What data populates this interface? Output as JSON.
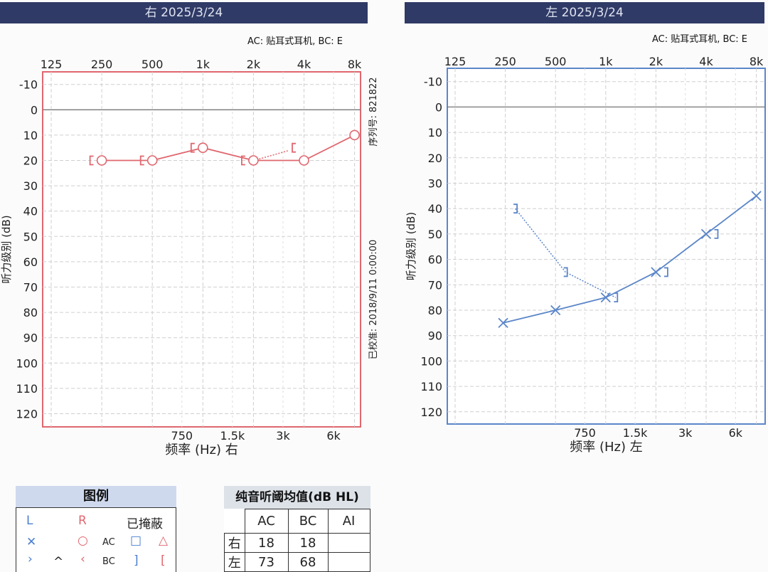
{
  "right_panel": {
    "title": "右 2025/3/24",
    "transducer": "AC: 贴耳式耳机, BC: E",
    "serial": "序列号: 821822",
    "calibrated": "已校准: 2018/9/11 0:00:00",
    "xlabel": "频率 (Hz) 右",
    "ylabel": "听力级别 (dB)",
    "color": "#e0676f"
  },
  "left_panel": {
    "title": "左 2025/3/24",
    "transducer": "AC: 贴耳式耳机, BC: E",
    "xlabel": "频率 (Hz) 左",
    "ylabel": "听力级别 (dB)",
    "color": "#5b86c9"
  },
  "chart_data": [
    {
      "type": "line",
      "title": "右 2025/3/24",
      "xlabel": "频率 (Hz) 右",
      "ylabel": "听力级别 (dB)",
      "x_ticks_top": [
        "125",
        "250",
        "500",
        "1k",
        "2k",
        "4k",
        "8k"
      ],
      "x_ticks_bottom": [
        "750",
        "1.5k",
        "3k",
        "6k"
      ],
      "y_ticks": [
        "-10",
        "0",
        "10",
        "20",
        "30",
        "40",
        "50",
        "60",
        "70",
        "80",
        "90",
        "100",
        "110",
        "120"
      ],
      "ylim": [
        -10,
        120
      ],
      "grid": true,
      "series": [
        {
          "name": "AC",
          "x": [
            "250",
            "500",
            "1k",
            "2k",
            "4k",
            "8k"
          ],
          "values": [
            20,
            20,
            15,
            20,
            20,
            10
          ]
        },
        {
          "name": "BC",
          "x": [
            "250",
            "500",
            "1k",
            "2k",
            "4k"
          ],
          "values": [
            20,
            20,
            15,
            20,
            15
          ]
        }
      ]
    },
    {
      "type": "line",
      "title": "左 2025/3/24",
      "xlabel": "频率 (Hz) 左",
      "ylabel": "听力级别 (dB)",
      "x_ticks_top": [
        "125",
        "250",
        "500",
        "1k",
        "2k",
        "4k",
        "8k"
      ],
      "x_ticks_bottom": [
        "750",
        "1.5k",
        "3k",
        "6k"
      ],
      "y_ticks": [
        "-10",
        "0",
        "10",
        "20",
        "30",
        "40",
        "50",
        "60",
        "70",
        "80",
        "90",
        "100",
        "110",
        "120"
      ],
      "ylim": [
        -10,
        120
      ],
      "grid": true,
      "series": [
        {
          "name": "AC",
          "x": [
            "250",
            "500",
            "1k",
            "2k",
            "4k",
            "8k"
          ],
          "values": [
            85,
            80,
            75,
            65,
            50,
            35
          ]
        },
        {
          "name": "BC",
          "x": [
            "250",
            "500",
            "1k",
            "2k",
            "4k"
          ],
          "values": [
            40,
            65,
            75,
            65,
            50
          ]
        }
      ]
    }
  ],
  "legend": {
    "title": "图例",
    "col_l": "L",
    "col_r": "R",
    "col_masked": "已掩蔽",
    "ac": "AC",
    "bc": "BC",
    "sym_l_ac": "✕",
    "sym_l_bc": "›",
    "sym_caret": "^",
    "sym_r_ac": "○",
    "sym_r_bc": "‹",
    "sym_m_ac_l": "□",
    "sym_m_ac_r": "△",
    "sym_m_bc_l": "]",
    "sym_m_bc_r": "["
  },
  "pta": {
    "title": "纯音听阈均值(dB HL)",
    "headers": [
      "AC",
      "BC",
      "AI"
    ],
    "rows": [
      {
        "label": "右",
        "ac": "18",
        "bc": "18",
        "ai": ""
      },
      {
        "label": "左",
        "ac": "73",
        "bc": "68",
        "ai": ""
      }
    ]
  }
}
